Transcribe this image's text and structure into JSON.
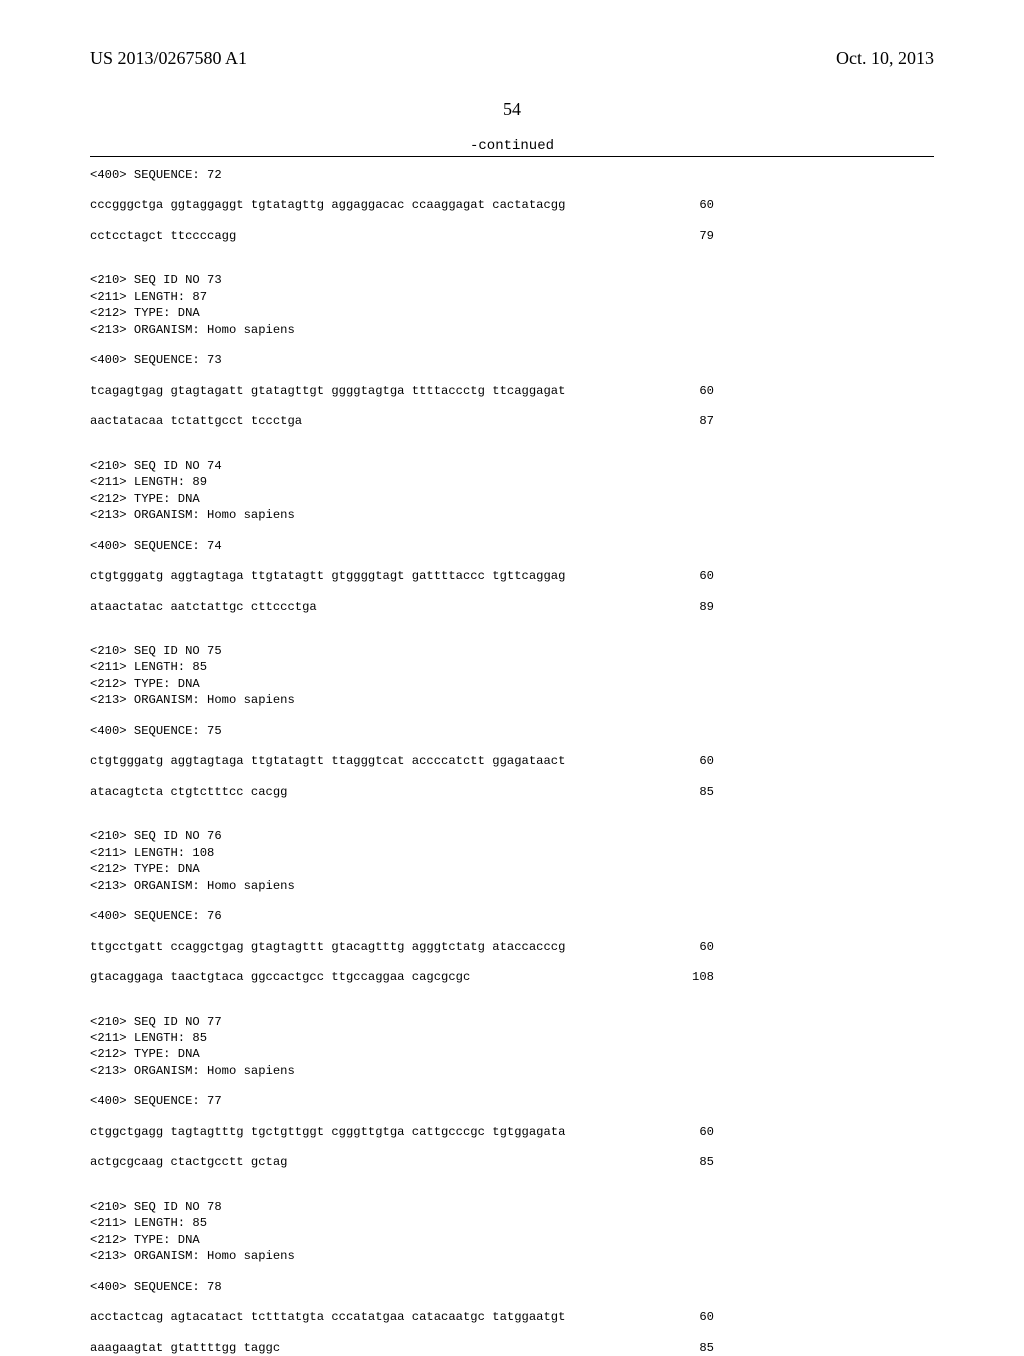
{
  "header": {
    "pub_number": "US 2013/0267580 A1",
    "pub_date": "Oct. 10, 2013"
  },
  "page_number": "54",
  "continued_label": "-continued",
  "entries": [
    {
      "pre_meta": [
        "<400> SEQUENCE: 72"
      ],
      "rows": [
        {
          "text": "cccgggctga ggtaggaggt tgtatagttg aggaggacac ccaaggagat cactatacgg",
          "num": "60"
        },
        {
          "text": "cctcctagct ttccccagg",
          "num": "79"
        }
      ]
    },
    {
      "meta": [
        "<210> SEQ ID NO 73",
        "<211> LENGTH: 87",
        "<212> TYPE: DNA",
        "<213> ORGANISM: Homo sapiens"
      ],
      "seq_line": "<400> SEQUENCE: 73",
      "rows": [
        {
          "text": "tcagagtgag gtagtagatt gtatagttgt ggggtagtga ttttaccctg ttcaggagat",
          "num": "60"
        },
        {
          "text": "aactatacaa tctattgcct tccctga",
          "num": "87"
        }
      ]
    },
    {
      "meta": [
        "<210> SEQ ID NO 74",
        "<211> LENGTH: 89",
        "<212> TYPE: DNA",
        "<213> ORGANISM: Homo sapiens"
      ],
      "seq_line": "<400> SEQUENCE: 74",
      "rows": [
        {
          "text": "ctgtgggatg aggtagtaga ttgtatagtt gtggggtagt gattttaccc tgttcaggag",
          "num": "60"
        },
        {
          "text": "ataactatac aatctattgc cttccctga",
          "num": "89"
        }
      ]
    },
    {
      "meta": [
        "<210> SEQ ID NO 75",
        "<211> LENGTH: 85",
        "<212> TYPE: DNA",
        "<213> ORGANISM: Homo sapiens"
      ],
      "seq_line": "<400> SEQUENCE: 75",
      "rows": [
        {
          "text": "ctgtgggatg aggtagtaga ttgtatagtt ttagggtcat accccatctt ggagataact",
          "num": "60"
        },
        {
          "text": "atacagtcta ctgtctttcc cacgg",
          "num": "85"
        }
      ]
    },
    {
      "meta": [
        "<210> SEQ ID NO 76",
        "<211> LENGTH: 108",
        "<212> TYPE: DNA",
        "<213> ORGANISM: Homo sapiens"
      ],
      "seq_line": "<400> SEQUENCE: 76",
      "rows": [
        {
          "text": "ttgcctgatt ccaggctgag gtagtagttt gtacagtttg agggtctatg ataccacccg",
          "num": "60"
        },
        {
          "text": "gtacaggaga taactgtaca ggccactgcc ttgccaggaa cagcgcgc",
          "num": "108"
        }
      ]
    },
    {
      "meta": [
        "<210> SEQ ID NO 77",
        "<211> LENGTH: 85",
        "<212> TYPE: DNA",
        "<213> ORGANISM: Homo sapiens"
      ],
      "seq_line": "<400> SEQUENCE: 77",
      "rows": [
        {
          "text": "ctggctgagg tagtagtttg tgctgttggt cgggttgtga cattgcccgc tgtggagata",
          "num": "60"
        },
        {
          "text": "actgcgcaag ctactgcctt gctag",
          "num": "85"
        }
      ]
    },
    {
      "meta": [
        "<210> SEQ ID NO 78",
        "<211> LENGTH: 85",
        "<212> TYPE: DNA",
        "<213> ORGANISM: Homo sapiens"
      ],
      "seq_line": "<400> SEQUENCE: 78",
      "rows": [
        {
          "text": "acctactcag agtacatact tctttatgta cccatatgaa catacaatgc tatggaatgt",
          "num": "60"
        },
        {
          "text": "aaagaagtat gtattttgg taggc",
          "num": "85"
        }
      ]
    }
  ]
}
